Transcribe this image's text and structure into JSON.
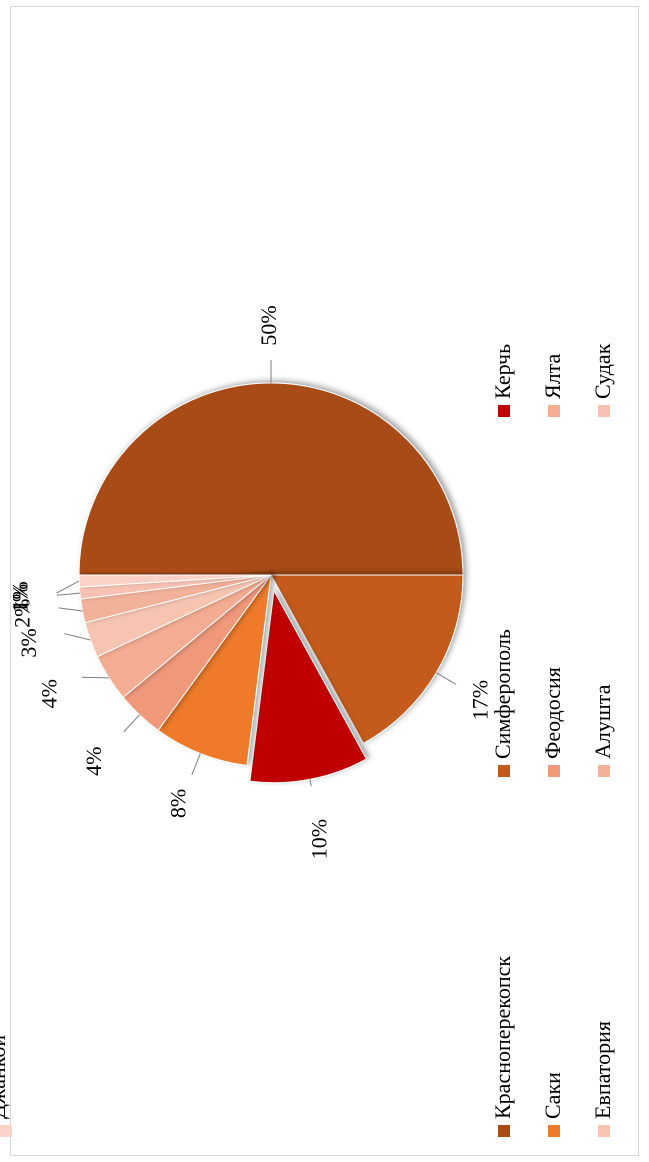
{
  "chart_data": {
    "type": "pie",
    "categories": [
      "Красноперекопск",
      "Симферополь",
      "Керчь",
      "Саки",
      "Феодосия",
      "Ялта",
      "Евпатория",
      "Алушта",
      "Судак",
      "Джанкой"
    ],
    "values": [
      50,
      17,
      10,
      8,
      4,
      4,
      3,
      2,
      1,
      1
    ],
    "data_labels": [
      "50%",
      "17%",
      "10%",
      "8%",
      "4%",
      "4%",
      "3%",
      "2%",
      "1%",
      "1%"
    ],
    "colors": [
      "#A84C14",
      "#C45A1C",
      "#C00000",
      "#EE7A2A",
      "#F0987A",
      "#F4AC92",
      "#F7C4B1",
      "#F2B29A",
      "#F7C2B4",
      "#FAD2C7"
    ],
    "exploded": "Керчь",
    "legend_position": "bottom",
    "orientation": "rotated-90-cw"
  }
}
